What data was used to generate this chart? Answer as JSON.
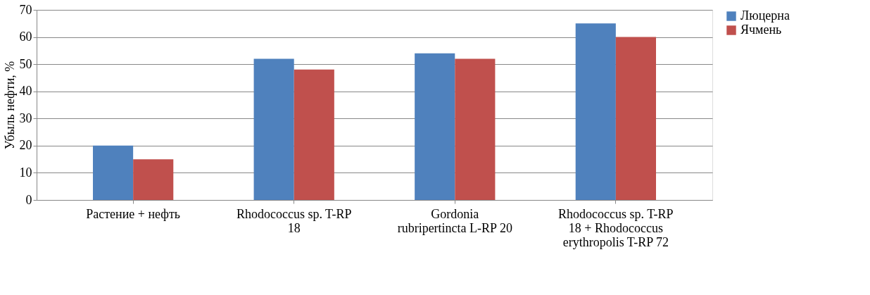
{
  "chart_data": {
    "type": "bar",
    "ylabel": "Убыль нефти, %",
    "categories": [
      "Растение + нефть",
      "Rhodococcus sp. T-RP\n18",
      "Gordonia\nrubripertincta L-RP 20",
      "Rhodococcus sp. T-RP\n18  + Rhodococcus\nerythropolis T-RP 72"
    ],
    "series": [
      {
        "name": "Люцерна",
        "color": "#4f81bd",
        "values": [
          20,
          52,
          54,
          65
        ]
      },
      {
        "name": "Ячмень",
        "color": "#c0504d",
        "values": [
          15,
          48,
          52,
          60
        ]
      }
    ],
    "ylim": [
      0,
      70
    ],
    "yticks": [
      0,
      10,
      20,
      30,
      40,
      50,
      60,
      70
    ],
    "grid": "y",
    "legend": "right"
  }
}
